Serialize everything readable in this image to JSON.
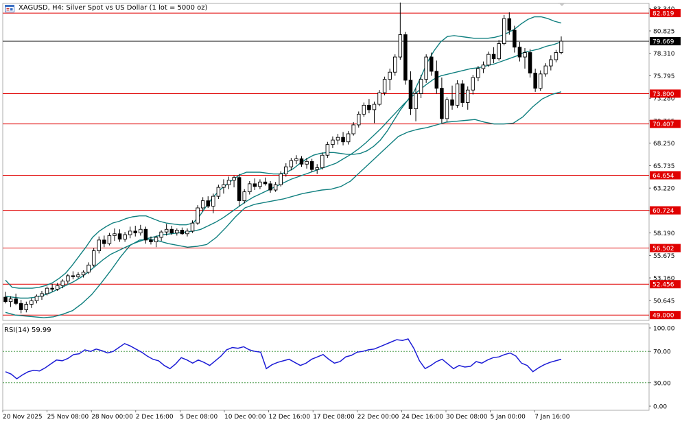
{
  "header": {
    "title": "XAGUSD, H4:  Silver Spot vs US Dollar (1 lot = 5000 oz)",
    "rsi_label": "RSI(14) 59.99"
  },
  "colors": {
    "candle": "#000000",
    "band": "#0f7f7f",
    "level_line": "#e00000",
    "level_box": "#e00000",
    "current_price_box": "#000000",
    "rsi_line": "#1c1cd6",
    "rsi_levels": "#2a8a2a"
  },
  "chart_data": [
    {
      "type": "candlestick",
      "symbol": "XAGUSD",
      "timeframe": "H4",
      "y_ticks": [
        83.34,
        80.825,
        78.31,
        75.795,
        73.28,
        70.765,
        68.25,
        65.735,
        63.22,
        60.705,
        58.19,
        55.675,
        53.16,
        50.645
      ],
      "ylim": [
        48.4,
        83.9
      ],
      "price_levels": [
        82.819,
        73.8,
        70.407,
        64.654,
        60.724,
        56.502,
        52.456,
        49.0
      ],
      "current_price": 79.669,
      "x_labels": [
        "20 Nov 2025",
        "25 Nov 08:00",
        "28 Nov 00:00",
        "2 Dec 16:00",
        "5 Dec 08:00",
        "10 Dec 00:00",
        "12 Dec 16:00",
        "17 Dec 08:00",
        "22 Dec 00:00",
        "24 Dec 16:00",
        "30 Dec 08:00",
        "5 Jan 00:00",
        "7 Jan 16:00"
      ],
      "series": [
        {
          "name": "Price",
          "type": "candlestick",
          "points": [
            [
              51,
              51.6,
              50.3,
              50.5
            ],
            [
              50.5,
              51.1,
              49.9,
              50.8
            ],
            [
              50.8,
              51.4,
              50.1,
              50.3
            ],
            [
              50.3,
              50.7,
              49.2,
              49.6
            ],
            [
              49.6,
              50.5,
              49.3,
              50.2
            ],
            [
              50.2,
              50.9,
              49.8,
              50.6
            ],
            [
              50.6,
              51.3,
              50.3,
              51.1
            ],
            [
              51.1,
              51.7,
              50.7,
              51.4
            ],
            [
              51.4,
              52.2,
              51.2,
              52.0
            ],
            [
              52.0,
              52.5,
              51.6,
              51.9
            ],
            [
              51.9,
              52.6,
              51.7,
              52.3
            ],
            [
              52.3,
              53.0,
              52.0,
              52.8
            ],
            [
              52.8,
              53.6,
              52.5,
              53.4
            ],
            [
              53.4,
              53.9,
              53.0,
              53.3
            ],
            [
              53.3,
              53.8,
              53.1,
              53.5
            ],
            [
              53.5,
              54.0,
              53.2,
              53.8
            ],
            [
              53.8,
              54.9,
              53.6,
              54.6
            ],
            [
              54.6,
              56.5,
              54.4,
              56.2
            ],
            [
              56.2,
              57.8,
              55.9,
              57.4
            ],
            [
              57.4,
              57.9,
              56.6,
              57.0
            ],
            [
              57.0,
              58.2,
              56.8,
              57.9
            ],
            [
              57.9,
              58.7,
              57.3,
              58.1
            ],
            [
              58.1,
              58.6,
              57.2,
              57.5
            ],
            [
              57.5,
              58.3,
              57.2,
              58.0
            ],
            [
              58.0,
              58.9,
              57.6,
              58.4
            ],
            [
              58.4,
              59.0,
              57.8,
              58.2
            ],
            [
              58.2,
              59.1,
              57.9,
              58.6
            ],
            [
              58.6,
              58.9,
              57.0,
              57.4
            ],
            [
              57.4,
              57.8,
              56.9,
              57.2
            ],
            [
              57.2,
              57.9,
              56.6,
              57.7
            ],
            [
              57.7,
              58.5,
              57.3,
              58.3
            ],
            [
              58.3,
              59.2,
              57.9,
              58.6
            ],
            [
              58.6,
              59.0,
              58.0,
              58.2
            ],
            [
              58.2,
              58.7,
              57.9,
              58.5
            ],
            [
              58.5,
              58.8,
              58.0,
              58.1
            ],
            [
              58.1,
              58.7,
              57.8,
              58.4
            ],
            [
              58.4,
              59.6,
              58.2,
              59.3
            ],
            [
              59.3,
              61.3,
              59.1,
              61.0
            ],
            [
              61.0,
              62.2,
              60.6,
              61.8
            ],
            [
              61.8,
              62.3,
              61.0,
              61.2
            ],
            [
              61.2,
              62.6,
              60.4,
              62.3
            ],
            [
              62.3,
              63.6,
              62.0,
              63.3
            ],
            [
              63.3,
              64.2,
              62.6,
              63.6
            ],
            [
              63.6,
              64.5,
              63.1,
              64.1
            ],
            [
              64.1,
              64.6,
              63.3,
              64.4
            ],
            [
              64.4,
              64.8,
              61.2,
              61.8
            ],
            [
              61.8,
              63.1,
              61.5,
              62.8
            ],
            [
              62.8,
              64.0,
              62.5,
              63.7
            ],
            [
              63.7,
              64.3,
              63.0,
              63.4
            ],
            [
              63.4,
              64.2,
              63.1,
              63.9
            ],
            [
              63.9,
              64.4,
              63.5,
              63.7
            ],
            [
              63.7,
              64.0,
              62.7,
              63.0
            ],
            [
              63.0,
              63.9,
              62.8,
              63.6
            ],
            [
              63.6,
              65.1,
              63.4,
              64.8
            ],
            [
              64.8,
              66.0,
              64.5,
              65.6
            ],
            [
              65.6,
              66.6,
              65.2,
              66.3
            ],
            [
              66.3,
              66.9,
              65.9,
              66.5
            ],
            [
              66.5,
              66.8,
              65.6,
              65.9
            ],
            [
              65.9,
              66.6,
              65.4,
              66.2
            ],
            [
              66.2,
              66.5,
              65.0,
              65.3
            ],
            [
              65.3,
              65.9,
              64.8,
              65.5
            ],
            [
              65.5,
              67.2,
              65.3,
              66.9
            ],
            [
              66.9,
              68.4,
              66.6,
              68.1
            ],
            [
              68.1,
              69.0,
              67.7,
              68.6
            ],
            [
              68.6,
              69.3,
              68.1,
              68.9
            ],
            [
              68.9,
              69.5,
              68.0,
              68.4
            ],
            [
              68.4,
              69.6,
              68.1,
              69.3
            ],
            [
              69.3,
              70.6,
              69.1,
              70.3
            ],
            [
              70.3,
              71.8,
              70.0,
              71.5
            ],
            [
              71.5,
              72.8,
              71.2,
              72.5
            ],
            [
              72.5,
              73.2,
              71.6,
              72.0
            ],
            [
              72.0,
              72.9,
              70.5,
              72.6
            ],
            [
              72.6,
              74.2,
              72.4,
              73.9
            ],
            [
              73.9,
              75.7,
              73.6,
              75.4
            ],
            [
              75.4,
              76.6,
              74.2,
              76.2
            ],
            [
              76.2,
              78.2,
              75.8,
              77.9
            ],
            [
              77.9,
              84.0,
              77.6,
              80.4
            ],
            [
              80.4,
              80.7,
              74.8,
              75.3
            ],
            [
              75.3,
              76.3,
              71.4,
              72.1
            ],
            [
              72.1,
              74.4,
              70.7,
              73.8
            ],
            [
              73.8,
              75.9,
              73.3,
              75.4
            ],
            [
              75.4,
              78.2,
              75.0,
              77.9
            ],
            [
              77.9,
              78.4,
              75.8,
              76.3
            ],
            [
              76.3,
              77.5,
              73.8,
              74.4
            ],
            [
              74.4,
              75.6,
              70.5,
              71.0
            ],
            [
              71.0,
              73.4,
              70.6,
              73.1
            ],
            [
              73.1,
              74.7,
              72.0,
              72.5
            ],
            [
              72.5,
              75.3,
              72.2,
              74.9
            ],
            [
              74.9,
              75.3,
              72.3,
              72.8
            ],
            [
              72.8,
              74.6,
              72.0,
              74.2
            ],
            [
              74.2,
              75.9,
              73.7,
              75.6
            ],
            [
              75.6,
              76.9,
              75.2,
              76.6
            ],
            [
              76.6,
              77.4,
              76.1,
              77.0
            ],
            [
              77.0,
              78.5,
              76.8,
              78.2
            ],
            [
              78.2,
              79.0,
              77.2,
              77.7
            ],
            [
              77.7,
              79.8,
              77.5,
              79.4
            ],
            [
              79.4,
              82.6,
              79.2,
              82.2
            ],
            [
              82.2,
              82.9,
              80.4,
              80.9
            ],
            [
              80.9,
              81.4,
              78.4,
              79.0
            ],
            [
              79.0,
              79.6,
              77.4,
              77.9
            ],
            [
              77.9,
              78.9,
              76.6,
              78.4
            ],
            [
              78.4,
              78.8,
              75.6,
              76.1
            ],
            [
              76.1,
              76.6,
              74.0,
              74.4
            ],
            [
              74.4,
              76.4,
              74.1,
              76.0
            ],
            [
              76.0,
              77.2,
              75.7,
              76.9
            ],
            [
              76.9,
              78.1,
              76.4,
              77.6
            ],
            [
              77.6,
              78.7,
              77.3,
              78.4
            ],
            [
              78.4,
              80.2,
              78.2,
              79.67
            ]
          ]
        },
        {
          "name": "BB upper",
          "type": "line",
          "values": [
            52.9,
            52.1,
            52.0,
            52.0,
            52.0,
            52.1,
            52.3,
            52.6,
            53.1,
            53.7,
            54.6,
            55.6,
            56.6,
            57.7,
            58.4,
            58.9,
            59.3,
            59.5,
            59.8,
            60.0,
            60.1,
            60.1,
            59.8,
            59.5,
            59.3,
            59.2,
            59.1,
            59.1,
            59.3,
            60.1,
            61.2,
            62.2,
            63.0,
            63.6,
            64.2,
            64.7,
            65.0,
            65.0,
            65.0,
            64.9,
            64.8,
            64.8,
            65.0,
            65.4,
            66.0,
            66.5,
            66.9,
            67.1,
            67.2,
            67.2,
            67.1,
            67.0,
            67.0,
            67.1,
            67.4,
            67.9,
            68.6,
            69.6,
            70.8,
            72.0,
            73.0,
            74.0,
            75.6,
            77.3,
            78.6,
            79.6,
            80.2,
            80.3,
            80.2,
            80.1,
            80.0,
            80.0,
            80.0,
            80.1,
            80.3,
            80.6,
            81.0,
            81.6,
            82.1,
            82.4,
            82.4,
            82.2,
            81.9,
            81.7
          ]
        },
        {
          "name": "BB middle",
          "type": "line",
          "values": [
            51.1,
            51.0,
            50.9,
            50.9,
            51.0,
            51.2,
            51.5,
            51.9,
            52.3,
            52.7,
            53.2,
            53.8,
            54.5,
            55.2,
            55.8,
            56.2,
            56.6,
            57.0,
            57.3,
            57.6,
            57.8,
            58.0,
            58.1,
            58.2,
            58.3,
            58.4,
            58.6,
            59.0,
            59.4,
            59.9,
            60.5,
            61.1,
            61.7,
            62.2,
            62.6,
            63.0,
            63.4,
            63.8,
            64.2,
            64.5,
            64.8,
            65.1,
            65.4,
            65.7,
            66.0,
            66.5,
            67.0,
            67.6,
            68.3,
            69.1,
            69.9,
            70.8,
            71.7,
            72.6,
            73.4,
            74.1,
            74.8,
            75.4,
            75.8,
            76.0,
            76.2,
            76.4,
            76.6,
            76.7,
            76.9,
            77.1,
            77.4,
            77.7,
            78.0,
            78.4,
            78.6,
            78.8,
            79.1,
            79.3,
            79.6
          ]
        },
        {
          "name": "BB lower",
          "type": "line",
          "values": [
            49.3,
            49.0,
            48.9,
            48.8,
            48.7,
            48.8,
            49.1,
            49.5,
            50.3,
            51.3,
            52.6,
            54.0,
            55.5,
            56.8,
            57.4,
            57.5,
            57.3,
            57.0,
            56.8,
            56.6,
            56.7,
            56.9,
            57.7,
            58.8,
            60.0,
            61.0,
            61.4,
            61.6,
            61.8,
            62.0,
            62.3,
            62.6,
            62.8,
            63.0,
            63.1,
            63.4,
            64.0,
            65.0,
            66.0,
            67.0,
            68.0,
            69.0,
            69.5,
            69.8,
            70.0,
            70.3,
            70.6,
            70.7,
            70.8,
            70.9,
            70.6,
            70.4,
            70.4,
            70.5,
            71.2,
            72.3,
            73.2,
            73.7,
            74.0
          ]
        }
      ]
    },
    {
      "type": "line",
      "name": "RSI(14)",
      "y_ticks": [
        100.0,
        70.0,
        30.0,
        0.0
      ],
      "levels": [
        70,
        30
      ],
      "ylim": [
        0,
        100
      ],
      "last_value": 59.99,
      "series": [
        {
          "name": "RSI",
          "values": [
            44,
            41,
            35,
            40,
            44,
            46,
            45,
            49,
            54,
            59,
            58,
            61,
            66,
            67,
            72,
            70,
            73,
            71,
            68,
            70,
            75,
            80,
            77,
            73,
            69,
            64,
            60,
            58,
            52,
            48,
            54,
            62,
            59,
            55,
            59,
            56,
            52,
            58,
            64,
            72,
            75,
            74,
            76,
            72,
            70,
            69,
            48,
            53,
            56,
            58,
            60,
            56,
            52,
            55,
            60,
            63,
            66,
            60,
            55,
            57,
            63,
            65,
            69,
            70,
            72,
            73,
            76,
            79,
            82,
            85,
            84,
            86,
            74,
            58,
            48,
            52,
            57,
            60,
            54,
            48,
            52,
            50,
            51,
            57,
            55,
            59,
            62,
            63,
            66,
            68,
            64,
            55,
            52,
            44,
            49,
            53,
            56,
            58,
            60
          ]
        }
      ]
    }
  ]
}
